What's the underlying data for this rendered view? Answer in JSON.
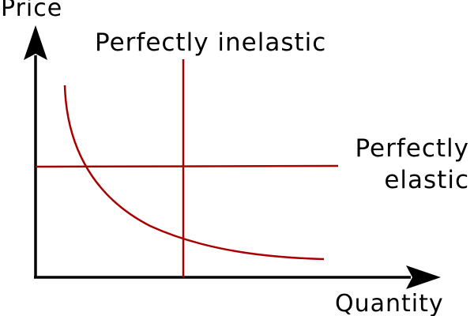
{
  "labels": {
    "y_axis": "Price",
    "x_axis": "Quantity",
    "inelastic": "Perfectly inelastic",
    "elastic_line1": "Perfectly",
    "elastic_line2": "elastic"
  },
  "colors": {
    "axis": "#000000",
    "curve": "#a80000"
  },
  "curves": [
    "perfectly-inelastic-line",
    "perfectly-elastic-line",
    "demand-curve"
  ]
}
